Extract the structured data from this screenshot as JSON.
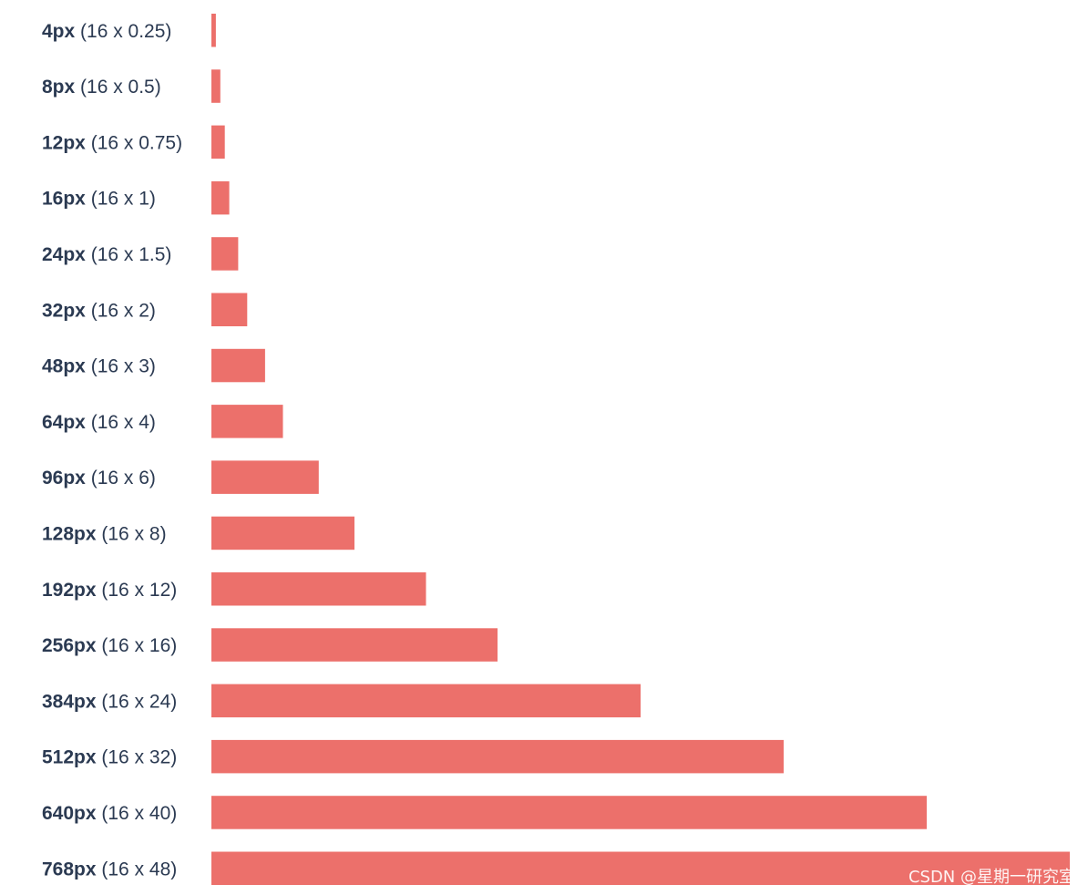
{
  "chart_data": {
    "type": "bar",
    "orientation": "horizontal",
    "categories": [
      "4px (16 x 0.25)",
      "8px (16 x 0.5)",
      "12px (16 x 0.75)",
      "16px (16 x 1)",
      "24px (16 x 1.5)",
      "32px (16 x 2)",
      "48px (16 x 3)",
      "64px (16 x 4)",
      "96px (16 x 6)",
      "128px (16 x 8)",
      "192px (16 x 12)",
      "256px (16 x 16)",
      "384px (16 x 24)",
      "512px (16 x 32)",
      "640px (16 x 40)",
      "768px (16 x 48)"
    ],
    "label_bold": [
      "4px",
      "8px",
      "12px",
      "16px",
      "24px",
      "32px",
      "48px",
      "64px",
      "96px",
      "128px",
      "192px",
      "256px",
      "384px",
      "512px",
      "640px",
      "768px"
    ],
    "label_rest": [
      "(16 x 0.25)",
      "(16 x 0.5)",
      "(16 x 0.75)",
      "(16 x 1)",
      "(16 x 1.5)",
      "(16 x 2)",
      "(16 x 3)",
      "(16 x 4)",
      "(16 x 6)",
      "(16 x 8)",
      "(16 x 12)",
      "(16 x 16)",
      "(16 x 24)",
      "(16 x 32)",
      "(16 x 40)",
      "(16 x 48)"
    ],
    "values": [
      4,
      8,
      12,
      16,
      24,
      32,
      48,
      64,
      96,
      128,
      192,
      256,
      384,
      512,
      640,
      768
    ],
    "xlim": [
      0,
      768
    ],
    "title": "",
    "xlabel": "",
    "ylabel": "",
    "grid": false,
    "legend": "none"
  },
  "colors": {
    "bar": "#ec706b",
    "label_text": "#2b3a52",
    "background": "#ffffff"
  },
  "watermark": {
    "text": "CSDN @星期一研究室"
  }
}
